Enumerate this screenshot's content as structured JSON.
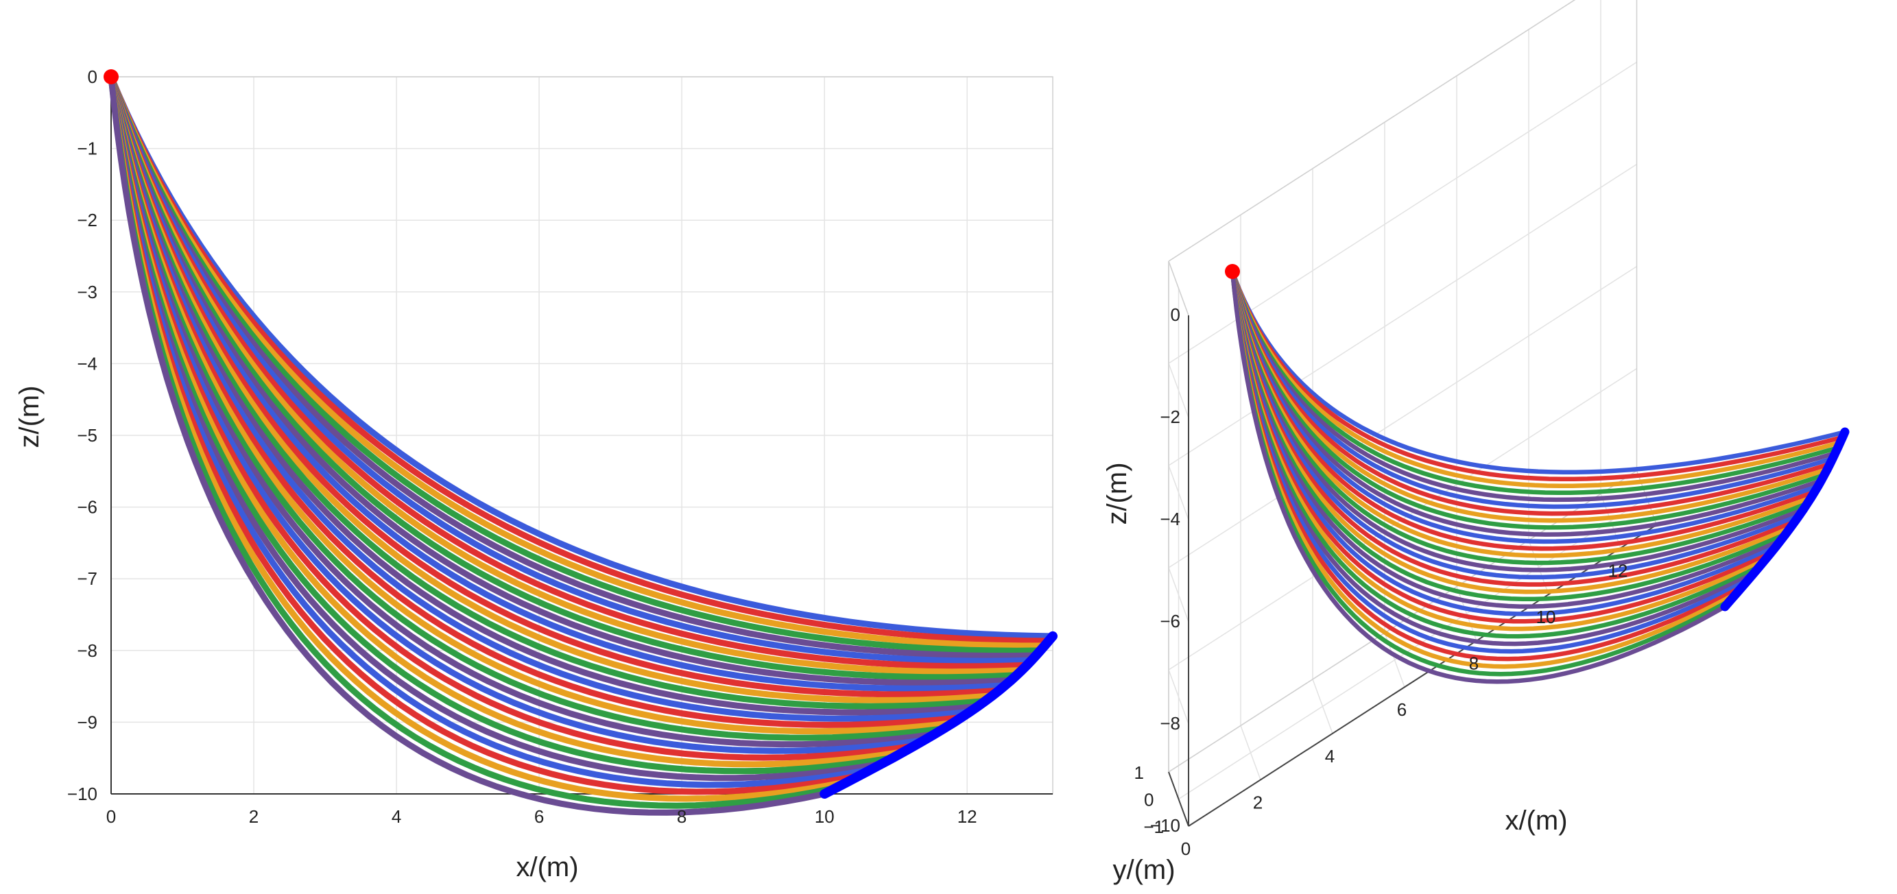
{
  "chart_data": [
    {
      "type": "line",
      "view": "2D x-z projection",
      "xlabel": "x/(m)",
      "ylabel": "z/(m)",
      "xlim": [
        0,
        13.2
      ],
      "ylim": [
        -10,
        0
      ],
      "x_ticks": [
        "0",
        "2",
        "4",
        "6",
        "8",
        "10",
        "12"
      ],
      "y_ticks": [
        "0",
        "-1",
        "-2",
        "-3",
        "-4",
        "-5",
        "-6",
        "-7",
        "-8",
        "-9",
        "-10"
      ],
      "grid": true,
      "anchor_point": {
        "x": 0,
        "z": 0,
        "color": "#ff0000"
      },
      "curve_family": {
        "count": 30,
        "first_curve": {
          "end_x": 13.2,
          "end_z": -7.8,
          "min_z": -7.8
        },
        "last_curve": {
          "end_x": 10.0,
          "end_z": -10.0,
          "min_z": -10.0
        },
        "line_colors": [
          "#3b5bdb",
          "#e03131",
          "#e8a020",
          "#2f9e44",
          "#6a4c93"
        ]
      },
      "endpoint_arc_color": "#0000ff"
    },
    {
      "type": "line",
      "view": "3D",
      "xlabel": "x/(m)",
      "ylabel": "y/(m)",
      "zlabel": "z/(m)",
      "xlim": [
        0,
        13
      ],
      "ylim": [
        -1,
        1
      ],
      "zlim": [
        -10,
        0
      ],
      "x_ticks": [
        "0",
        "2",
        "4",
        "6",
        "8",
        "10",
        "12"
      ],
      "y_ticks": [
        "-1",
        "0",
        "1"
      ],
      "z_ticks": [
        "0",
        "-2",
        "-4",
        "-6",
        "-8",
        "-10"
      ],
      "grid": true,
      "anchor_point": {
        "x": 0,
        "y": 0,
        "z": 0,
        "color": "#ff0000"
      },
      "curve_family": {
        "count": 30,
        "line_colors": [
          "#3b5bdb",
          "#e03131",
          "#e8a020",
          "#2f9e44",
          "#6a4c93"
        ]
      },
      "endpoint_arc_color": "#0000ff"
    }
  ]
}
